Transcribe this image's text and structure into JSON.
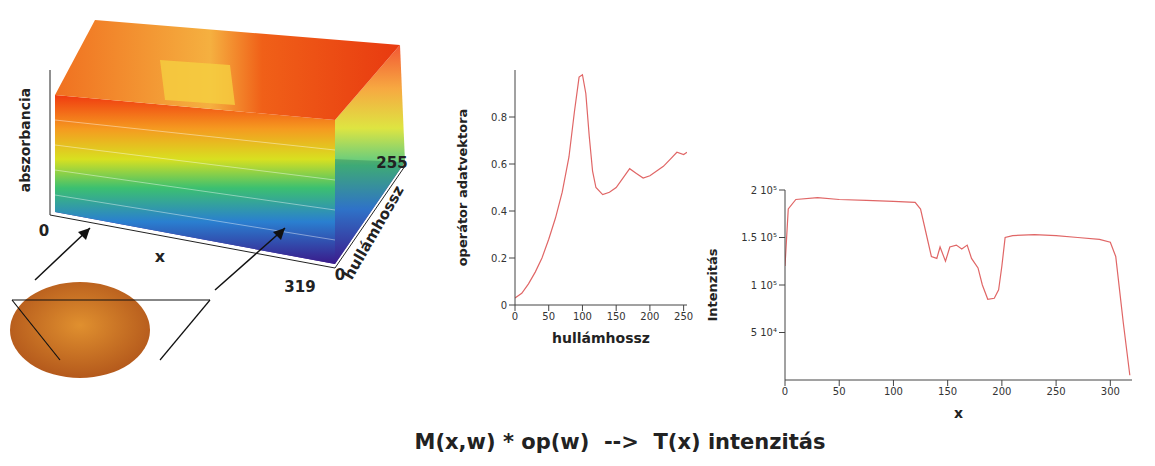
{
  "surface": {
    "type": "surface3d",
    "z_label": "abszorbancia",
    "x_label": "x",
    "y_label": "hullámhossz",
    "xticks": [
      0,
      319
    ],
    "yticks": [
      0,
      255
    ]
  },
  "chart_data": [
    {
      "type": "line",
      "x_label": "hullámhossz",
      "y_label": "operátor adatvektora",
      "x": [
        0,
        10,
        20,
        30,
        40,
        50,
        60,
        70,
        80,
        88,
        95,
        100,
        105,
        110,
        115,
        120,
        130,
        140,
        150,
        160,
        170,
        180,
        190,
        200,
        210,
        220,
        230,
        240,
        250,
        255
      ],
      "values": [
        0.03,
        0.05,
        0.09,
        0.14,
        0.2,
        0.28,
        0.37,
        0.48,
        0.63,
        0.82,
        0.97,
        0.98,
        0.9,
        0.72,
        0.57,
        0.5,
        0.47,
        0.48,
        0.5,
        0.54,
        0.58,
        0.56,
        0.54,
        0.55,
        0.57,
        0.59,
        0.62,
        0.65,
        0.64,
        0.65
      ],
      "color": "#e06666",
      "xlim": [
        0,
        255
      ],
      "ylim": [
        0,
        1
      ],
      "xticks": [
        0,
        50,
        100,
        150,
        200,
        250
      ],
      "yticks": [
        0,
        0.2,
        0.4,
        0.6,
        0.8
      ],
      "grid": false
    },
    {
      "type": "line",
      "x_label": "x",
      "y_label": "Intenzitás",
      "x": [
        0,
        3,
        10,
        30,
        50,
        75,
        100,
        120,
        125,
        130,
        135,
        140,
        143,
        148,
        152,
        158,
        163,
        168,
        172,
        178,
        182,
        187,
        193,
        197,
        200,
        203,
        210,
        230,
        250,
        270,
        290,
        300,
        305,
        312,
        318
      ],
      "values": [
        120000,
        180000,
        190000,
        192000,
        190000,
        189000,
        188000,
        187000,
        180000,
        155000,
        130000,
        128000,
        140000,
        125000,
        140000,
        142000,
        138000,
        142000,
        128000,
        118000,
        100000,
        85000,
        86000,
        95000,
        120000,
        150000,
        152000,
        153000,
        152000,
        150000,
        148000,
        145000,
        130000,
        60000,
        5000
      ],
      "color": "#e06666",
      "xlim": [
        0,
        320
      ],
      "ylim": [
        0,
        200000
      ],
      "xticks": [
        0,
        50,
        100,
        150,
        200,
        250,
        300
      ],
      "yticks": [
        {
          "value": 50000,
          "label": "5 10⁴"
        },
        {
          "value": 100000,
          "label": "1 10⁵"
        },
        {
          "value": 150000,
          "label": "1.5 10⁵"
        },
        {
          "value": 200000,
          "label": "2 10⁵"
        }
      ],
      "grid": false
    }
  ],
  "caption": "M(x,w) * op(w)  -->  T(x) intenzitás"
}
